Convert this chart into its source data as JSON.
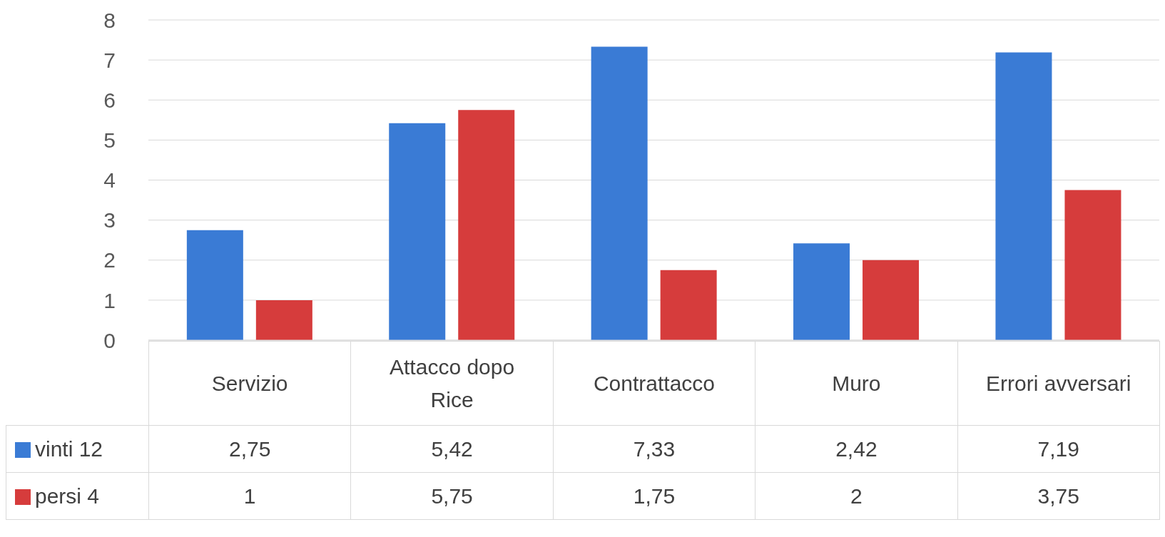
{
  "chart_data": {
    "type": "bar",
    "categories": [
      "Servizio",
      "Attacco dopo Rice",
      "Contrattacco",
      "Muro",
      "Errori avversari"
    ],
    "series": [
      {
        "name": "vinti 12",
        "color": "#3a7bd5",
        "values": [
          2.75,
          5.42,
          7.33,
          2.42,
          7.19
        ],
        "value_labels": [
          "2,75",
          "5,42",
          "7,33",
          "2,42",
          "7,19"
        ]
      },
      {
        "name": "persi 4",
        "color": "#d63c3c",
        "values": [
          1,
          5.75,
          1.75,
          2,
          3.75
        ],
        "value_labels": [
          "1",
          "5,75",
          "1,75",
          "2",
          "3,75"
        ]
      }
    ],
    "ylim": [
      0,
      8
    ],
    "yticks": [
      0,
      1,
      2,
      3,
      4,
      5,
      6,
      7,
      8
    ],
    "grid": "y",
    "legend": "bottom"
  }
}
